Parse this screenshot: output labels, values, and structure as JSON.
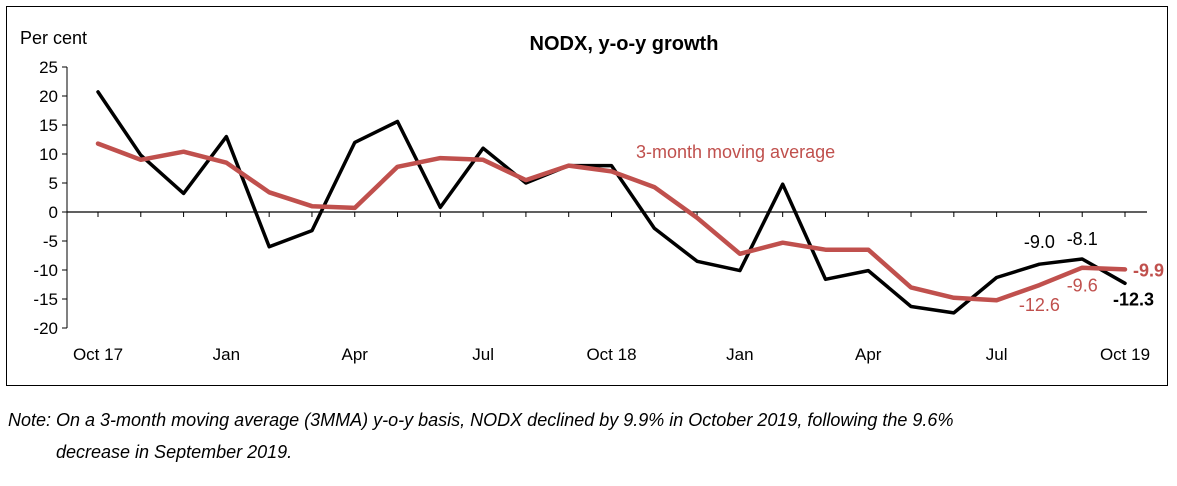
{
  "chart_data": {
    "type": "line",
    "title": "NODX, y-o-y growth",
    "ylabel": "Per cent",
    "ylim": [
      -20,
      25
    ],
    "yticks": [
      25,
      20,
      15,
      10,
      5,
      0,
      -5,
      -10,
      -15,
      -20
    ],
    "x": [
      "Oct 17",
      "Nov 17",
      "Dec 17",
      "Jan 18",
      "Feb 18",
      "Mar 18",
      "Apr 18",
      "May 18",
      "Jun 18",
      "Jul 18",
      "Aug 18",
      "Sep 18",
      "Oct 18",
      "Nov 18",
      "Dec 18",
      "Jan 19",
      "Feb 19",
      "Mar 19",
      "Apr 19",
      "May 19",
      "Jun 19",
      "Jul 19",
      "Aug 19",
      "Sep 19",
      "Oct 19"
    ],
    "xtick_labels": [
      {
        "index": 0,
        "label": "Oct 17"
      },
      {
        "index": 3,
        "label": "Jan"
      },
      {
        "index": 6,
        "label": "Apr"
      },
      {
        "index": 9,
        "label": "Jul"
      },
      {
        "index": 12,
        "label": "Oct 18"
      },
      {
        "index": 15,
        "label": "Jan"
      },
      {
        "index": 18,
        "label": "Apr"
      },
      {
        "index": 21,
        "label": "Jul"
      },
      {
        "index": 24,
        "label": "Oct 19"
      }
    ],
    "series": [
      {
        "color": "#000000",
        "values": [
          20.7,
          9.8,
          3.2,
          13.0,
          -6.0,
          -3.2,
          12.0,
          15.6,
          0.8,
          11.0,
          5.0,
          8.0,
          8.0,
          -2.8,
          -8.5,
          -10.1,
          4.8,
          -11.6,
          -10.1,
          -16.3,
          -17.4,
          -11.3,
          -9.0,
          -8.1,
          -12.3
        ]
      },
      {
        "name": "3-month moving average",
        "color": "#c0504d",
        "values": [
          11.8,
          9.0,
          10.4,
          8.5,
          3.4,
          1.0,
          0.7,
          7.8,
          9.3,
          9.0,
          5.5,
          8.0,
          7.0,
          4.3,
          -1.0,
          -7.2,
          -5.3,
          -6.5,
          -6.5,
          -13.0,
          -14.8,
          -15.2,
          -12.6,
          -9.6,
          -9.9
        ]
      }
    ],
    "annotations": [
      {
        "text": "-9.0",
        "series": 0,
        "index": 22,
        "color": "#000000",
        "bold": false
      },
      {
        "text": "-8.1",
        "series": 0,
        "index": 23,
        "color": "#000000",
        "bold": false
      },
      {
        "text": "-12.3",
        "series": 0,
        "index": 24,
        "color": "#000000",
        "bold": true
      },
      {
        "text": "-12.6",
        "series": 1,
        "index": 22,
        "color": "#c0504d",
        "bold": false
      },
      {
        "text": "-9.6",
        "series": 1,
        "index": 23,
        "color": "#c0504d",
        "bold": false
      },
      {
        "text": "-9.9",
        "series": 1,
        "index": 24,
        "color": "#c0504d",
        "bold": true
      }
    ],
    "grid": false
  },
  "note": {
    "line1": "Note: On a 3-month moving average (3MMA) y-o-y basis, NODX declined by 9.9% in October 2019, following the 9.6%",
    "line2": "decrease in September 2019."
  }
}
